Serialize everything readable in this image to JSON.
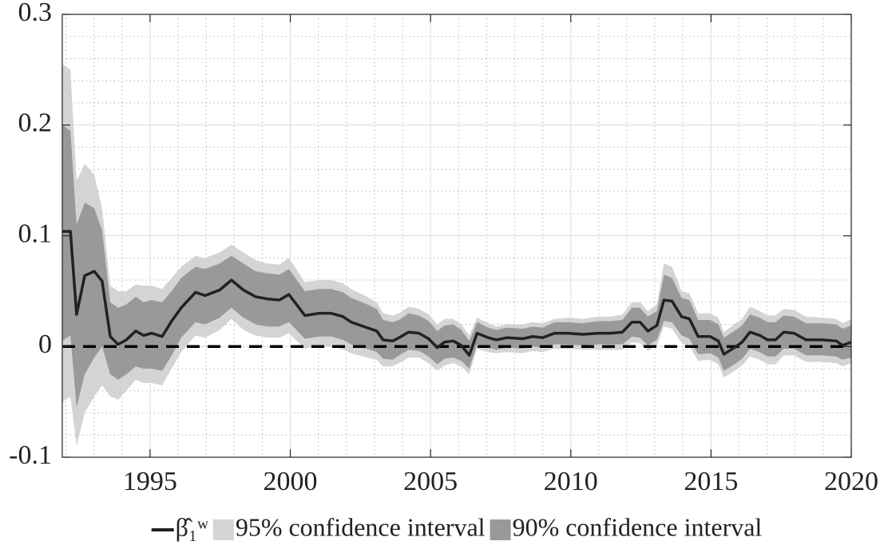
{
  "chart_data": {
    "type": "line",
    "x": [
      1991.87,
      1992.16,
      1992.38,
      1992.67,
      1993.01,
      1993.29,
      1993.58,
      1993.86,
      1994.15,
      1994.49,
      1994.77,
      1995.06,
      1995.43,
      1995.77,
      1996.11,
      1996.62,
      1996.96,
      1997.48,
      1997.9,
      1998.33,
      1998.76,
      1999.18,
      1999.61,
      1999.95,
      2000.52,
      2001.03,
      2001.46,
      2001.88,
      2002.17,
      2002.74,
      2003.08,
      2003.31,
      2003.65,
      2003.88,
      2004.22,
      2004.59,
      2004.93,
      2005.24,
      2005.5,
      2005.81,
      2006.1,
      2006.38,
      2006.66,
      2007.06,
      2007.35,
      2007.72,
      2008.29,
      2008.63,
      2009.0,
      2009.42,
      2009.91,
      2010.42,
      2010.99,
      2011.42,
      2011.84,
      2012.18,
      2012.47,
      2012.75,
      2013.07,
      2013.32,
      2013.61,
      2013.95,
      2014.23,
      2014.54,
      2014.97,
      2015.26,
      2015.46,
      2015.83,
      2016.11,
      2016.39,
      2016.74,
      2017.02,
      2017.3,
      2017.59,
      2017.96,
      2018.39,
      2018.95,
      2019.47,
      2019.69,
      2020.0
    ],
    "series": [
      {
        "name": "β̂₁ʷ",
        "color": "#222222",
        "role": "line",
        "values": [
          0.104,
          0.104,
          0.029,
          0.064,
          0.068,
          0.059,
          0.009,
          0.002,
          0.006,
          0.014,
          0.01,
          0.012,
          0.009,
          0.023,
          0.035,
          0.049,
          0.046,
          0.051,
          0.06,
          0.051,
          0.045,
          0.043,
          0.042,
          0.047,
          0.028,
          0.03,
          0.03,
          0.027,
          0.022,
          0.017,
          0.014,
          0.006,
          0.005,
          0.008,
          0.013,
          0.012,
          0.007,
          -0.001,
          0.004,
          0.005,
          0.001,
          -0.008,
          0.012,
          0.008,
          0.006,
          0.008,
          0.007,
          0.009,
          0.008,
          0.012,
          0.012,
          0.011,
          0.012,
          0.012,
          0.013,
          0.022,
          0.022,
          0.014,
          0.019,
          0.042,
          0.041,
          0.027,
          0.025,
          0.009,
          0.009,
          0.005,
          -0.007,
          -0.001,
          0.004,
          0.013,
          0.01,
          0.006,
          0.006,
          0.013,
          0.012,
          0.006,
          0.006,
          0.005,
          0.001,
          0.004
        ]
      },
      {
        "name": "95% confidence interval",
        "color": "#d4d4d4",
        "role": "band",
        "lower": [
          -0.05,
          -0.045,
          -0.09,
          -0.06,
          -0.045,
          -0.035,
          -0.045,
          -0.048,
          -0.04,
          -0.03,
          -0.033,
          -0.033,
          -0.035,
          -0.02,
          -0.005,
          0.01,
          0.008,
          0.015,
          0.025,
          0.015,
          0.01,
          0.008,
          0.008,
          0.012,
          -0.002,
          0.0,
          0.0,
          -0.003,
          -0.006,
          -0.01,
          -0.012,
          -0.018,
          -0.018,
          -0.015,
          -0.01,
          -0.01,
          -0.015,
          -0.022,
          -0.017,
          -0.015,
          -0.018,
          -0.025,
          -0.002,
          -0.005,
          -0.006,
          -0.005,
          -0.006,
          -0.004,
          -0.005,
          -0.002,
          -0.002,
          -0.003,
          -0.003,
          -0.003,
          -0.003,
          0.004,
          0.003,
          -0.004,
          0.001,
          0.018,
          0.016,
          0.003,
          0.0,
          -0.013,
          -0.012,
          -0.016,
          -0.028,
          -0.022,
          -0.017,
          -0.009,
          -0.012,
          -0.016,
          -0.016,
          -0.008,
          -0.008,
          -0.014,
          -0.014,
          -0.015,
          -0.018,
          -0.015
        ],
        "upper": [
          0.255,
          0.25,
          0.15,
          0.165,
          0.155,
          0.125,
          0.055,
          0.05,
          0.05,
          0.056,
          0.055,
          0.055,
          0.052,
          0.062,
          0.072,
          0.082,
          0.08,
          0.085,
          0.092,
          0.085,
          0.078,
          0.075,
          0.074,
          0.08,
          0.058,
          0.06,
          0.06,
          0.057,
          0.052,
          0.045,
          0.04,
          0.03,
          0.028,
          0.03,
          0.036,
          0.034,
          0.029,
          0.02,
          0.025,
          0.025,
          0.02,
          0.01,
          0.026,
          0.021,
          0.018,
          0.02,
          0.02,
          0.022,
          0.021,
          0.025,
          0.026,
          0.025,
          0.027,
          0.027,
          0.029,
          0.04,
          0.04,
          0.032,
          0.038,
          0.075,
          0.072,
          0.05,
          0.048,
          0.03,
          0.03,
          0.026,
          0.013,
          0.02,
          0.025,
          0.036,
          0.032,
          0.028,
          0.028,
          0.034,
          0.033,
          0.027,
          0.026,
          0.025,
          0.021,
          0.025
        ]
      },
      {
        "name": "90% confidence interval",
        "color": "#999999",
        "role": "band",
        "lower": [
          0.005,
          0.01,
          -0.055,
          -0.025,
          -0.01,
          0.0,
          -0.025,
          -0.03,
          -0.025,
          -0.018,
          -0.02,
          -0.02,
          -0.022,
          -0.008,
          0.008,
          0.022,
          0.02,
          0.026,
          0.035,
          0.026,
          0.02,
          0.018,
          0.018,
          0.022,
          0.007,
          0.009,
          0.009,
          0.006,
          0.002,
          -0.002,
          -0.005,
          -0.011,
          -0.012,
          -0.008,
          -0.003,
          -0.004,
          -0.009,
          -0.016,
          -0.011,
          -0.01,
          -0.013,
          -0.02,
          0.002,
          -0.001,
          -0.003,
          -0.001,
          -0.002,
          0.0,
          -0.001,
          0.002,
          0.002,
          0.001,
          0.002,
          0.002,
          0.002,
          0.009,
          0.008,
          0.001,
          0.006,
          0.023,
          0.022,
          0.01,
          0.007,
          -0.007,
          -0.006,
          -0.01,
          -0.022,
          -0.016,
          -0.011,
          -0.002,
          -0.005,
          -0.009,
          -0.009,
          -0.002,
          -0.002,
          -0.008,
          -0.008,
          -0.009,
          -0.012,
          -0.01
        ],
        "upper": [
          0.2,
          0.195,
          0.11,
          0.13,
          0.125,
          0.105,
          0.04,
          0.035,
          0.038,
          0.045,
          0.04,
          0.042,
          0.04,
          0.05,
          0.062,
          0.072,
          0.07,
          0.075,
          0.082,
          0.075,
          0.068,
          0.066,
          0.065,
          0.07,
          0.05,
          0.052,
          0.052,
          0.049,
          0.044,
          0.038,
          0.034,
          0.024,
          0.022,
          0.024,
          0.03,
          0.028,
          0.023,
          0.014,
          0.019,
          0.02,
          0.015,
          0.005,
          0.022,
          0.017,
          0.015,
          0.017,
          0.016,
          0.018,
          0.017,
          0.022,
          0.022,
          0.021,
          0.023,
          0.023,
          0.024,
          0.035,
          0.035,
          0.027,
          0.032,
          0.065,
          0.062,
          0.044,
          0.042,
          0.024,
          0.024,
          0.02,
          0.008,
          0.014,
          0.019,
          0.029,
          0.026,
          0.022,
          0.022,
          0.028,
          0.027,
          0.021,
          0.021,
          0.02,
          0.016,
          0.019
        ]
      }
    ],
    "xlim": [
      1991.87,
      2020
    ],
    "ylim": [
      -0.1,
      0.3
    ],
    "xticks": [
      1995,
      2000,
      2005,
      2010,
      2015,
      2020
    ],
    "yticks": [
      -0.1,
      0,
      0.1,
      0.2,
      0.3
    ],
    "hline": 0,
    "grid": true,
    "minor_grid_divisions": 5,
    "legend": "bottom"
  }
}
